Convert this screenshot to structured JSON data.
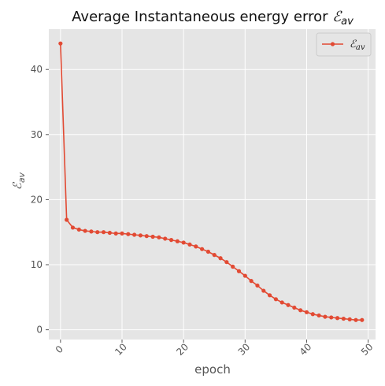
{
  "chart_data": {
    "type": "line",
    "title_prefix": "Average Instantaneous energy error ",
    "title_symbol": "ℰ",
    "title_sub": "av",
    "xlabel": "epoch",
    "ylabel_symbol": "ℰ",
    "ylabel_sub": "av",
    "xlim": [
      -1.9,
      51.2
    ],
    "ylim": [
      -1.5,
      46.2
    ],
    "xticks": [
      "0",
      "10",
      "20",
      "30",
      "40",
      "50"
    ],
    "yticks": [
      "0",
      "10",
      "20",
      "30",
      "40"
    ],
    "grid": true,
    "legend_position": "top-right",
    "colors": {
      "line": "#e24a33",
      "plot_bg": "#e5e5e5",
      "grid": "#ffffff"
    },
    "series": [
      {
        "name_symbol": "ℰ",
        "name_sub": "av",
        "x": [
          0,
          1,
          2,
          3,
          4,
          5,
          6,
          7,
          8,
          9,
          10,
          11,
          12,
          13,
          14,
          15,
          16,
          17,
          18,
          19,
          20,
          21,
          22,
          23,
          24,
          25,
          26,
          27,
          28,
          29,
          30,
          31,
          32,
          33,
          34,
          35,
          36,
          37,
          38,
          39,
          40,
          41,
          42,
          43,
          44,
          45,
          46,
          47,
          48,
          49
        ],
        "values": [
          44.0,
          16.9,
          15.7,
          15.4,
          15.2,
          15.1,
          15.0,
          15.0,
          14.9,
          14.8,
          14.8,
          14.7,
          14.6,
          14.5,
          14.4,
          14.3,
          14.2,
          14.0,
          13.8,
          13.6,
          13.4,
          13.1,
          12.8,
          12.4,
          12.0,
          11.5,
          11.0,
          10.4,
          9.7,
          9.0,
          8.3,
          7.5,
          6.8,
          6.0,
          5.3,
          4.7,
          4.2,
          3.8,
          3.4,
          3.0,
          2.7,
          2.4,
          2.2,
          2.0,
          1.9,
          1.8,
          1.7,
          1.6,
          1.5,
          1.5
        ]
      }
    ]
  }
}
